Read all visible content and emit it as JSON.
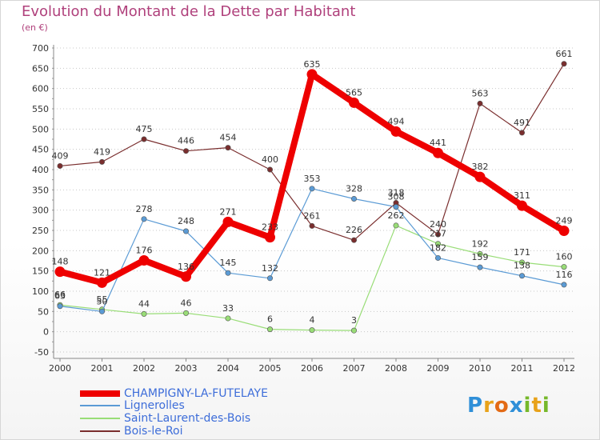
{
  "header": {
    "title": "Evolution du Montant de la Dette par Habitant",
    "subtitle": "(en €)"
  },
  "logo": {
    "text": "Proxiti",
    "colors": [
      "#2f8fd8",
      "#e8a21a",
      "#e36a15",
      "#2f8fd8",
      "#76b82a",
      "#e8a21a",
      "#76b82a"
    ]
  },
  "chart_data": {
    "type": "line",
    "title": "Evolution du Montant de la Dette par Habitant",
    "subtitle": "(en €)",
    "x": [
      "2000",
      "2001",
      "2002",
      "2003",
      "2004",
      "2005",
      "2006",
      "2007",
      "2008",
      "2009",
      "2010",
      "2011",
      "2012"
    ],
    "yticks": [
      700,
      650,
      600,
      550,
      500,
      450,
      400,
      350,
      300,
      250,
      200,
      150,
      100,
      50,
      0,
      -50
    ],
    "ylim": [
      -50,
      700
    ],
    "grid": "horizontal-dotted",
    "legend_position": "bottom-left",
    "series": [
      {
        "name": "CHAMPIGNY-LA-FUTELAYE",
        "color": "#ee0000",
        "values": [
          148,
          121,
          176,
          136,
          271,
          233,
          635,
          565,
          494,
          441,
          382,
          311,
          249
        ]
      },
      {
        "name": "Lignerolles",
        "color": "#5b9bd5",
        "values": [
          63,
          50,
          278,
          248,
          145,
          132,
          353,
          328,
          308,
          182,
          159,
          138,
          116
        ]
      },
      {
        "name": "Saint-Laurent-des-Bois",
        "color": "#99dd77",
        "values": [
          66,
          55,
          44,
          46,
          33,
          6,
          4,
          3,
          262,
          217,
          192,
          171,
          160
        ]
      },
      {
        "name": "Bois-le-Roi",
        "color": "#7a2e2e",
        "values": [
          409,
          419,
          475,
          446,
          454,
          400,
          261,
          226,
          318,
          240,
          563,
          491,
          661
        ]
      }
    ]
  }
}
